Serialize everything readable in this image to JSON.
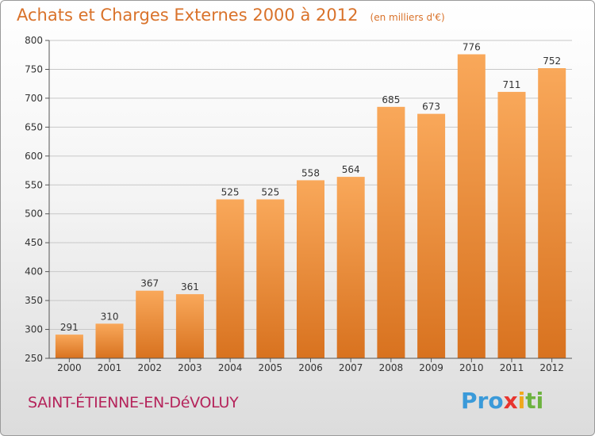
{
  "header": {
    "title": "Achats et Charges Externes 2000 à 2012",
    "subtitle": "(en milliers d'€)"
  },
  "footer": {
    "place": "SAINT-ÉTIENNE-EN-DéVOLUY",
    "logo": [
      "Pro",
      "x",
      "i",
      "ti"
    ]
  },
  "colors": {
    "title": "#d9722a",
    "place": "#b5245b",
    "bar_top": "#f9a85a",
    "bar_bottom": "#d8721f"
  },
  "chart_data": {
    "type": "bar",
    "title": "Achats et Charges Externes 2000 à 2012",
    "subtitle": "(en milliers d'€)",
    "xlabel": "",
    "ylabel": "",
    "categories": [
      "2000",
      "2001",
      "2002",
      "2003",
      "2004",
      "2005",
      "2006",
      "2007",
      "2008",
      "2009",
      "2010",
      "2011",
      "2012"
    ],
    "values": [
      291,
      310,
      367,
      361,
      525,
      525,
      558,
      564,
      685,
      673,
      776,
      711,
      752
    ],
    "ylim": [
      250,
      800
    ],
    "yticks": [
      250,
      300,
      350,
      400,
      450,
      500,
      550,
      600,
      650,
      700,
      750,
      800
    ],
    "grid": true,
    "data_labels": true
  }
}
